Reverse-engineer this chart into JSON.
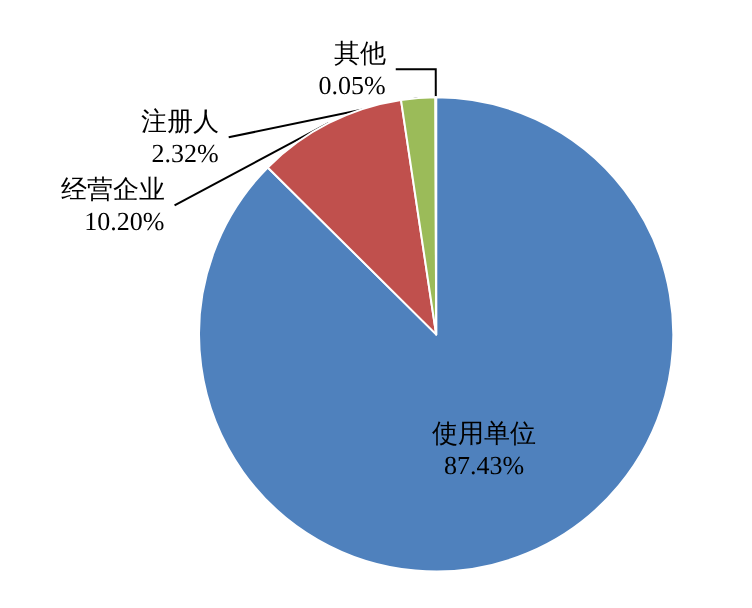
{
  "chart_data": {
    "type": "pie",
    "categories": [
      "使用单位",
      "经营企业",
      "注册人",
      "其他"
    ],
    "values": [
      87.43,
      10.2,
      2.32,
      0.05
    ],
    "value_labels": [
      "87.43%",
      "10.20%",
      "2.32%",
      "0.05%"
    ],
    "colors": [
      "#4f81bd",
      "#c0504d",
      "#9bbb59",
      "#8064a2"
    ],
    "legend": false
  }
}
